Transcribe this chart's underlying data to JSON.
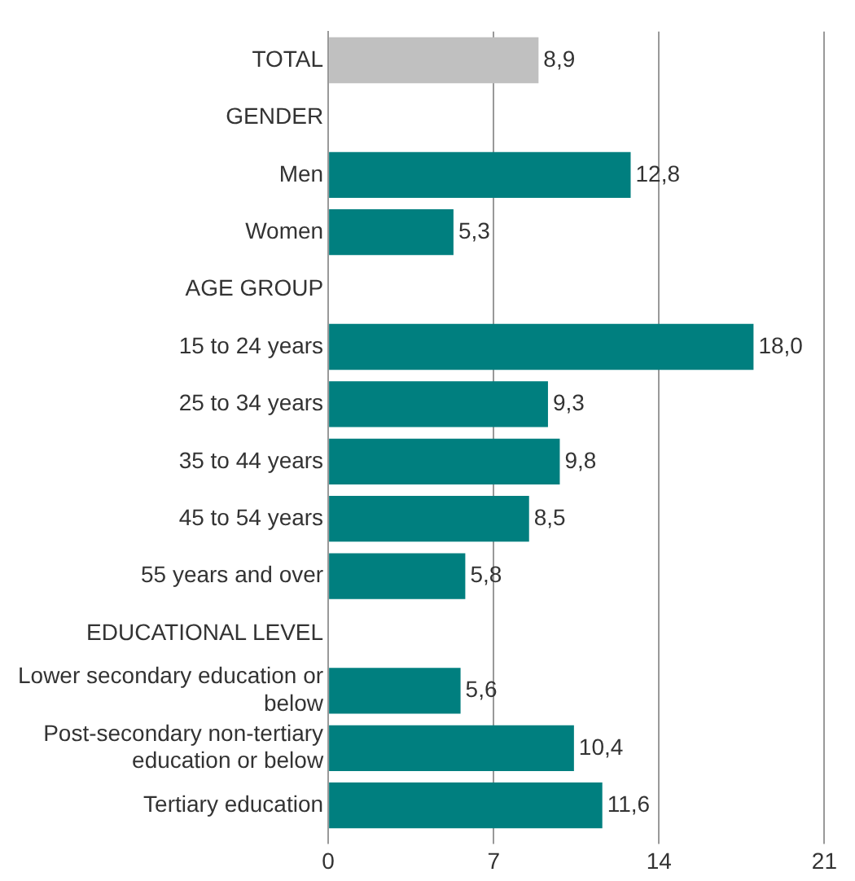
{
  "chart_data": {
    "type": "bar",
    "orientation": "horizontal",
    "categories": [
      "TOTAL",
      "GENDER",
      "Men",
      "Women",
      "AGE GROUP",
      "15 to 24 years",
      "25 to 34 years",
      "35 to 44 years",
      "45 to 54 years",
      "55 years and over",
      "EDUCATIONAL LEVEL",
      "Lower secondary education or below",
      "Post-secondary non-tertiary education or below",
      "Tertiary education"
    ],
    "values": [
      8.9,
      null,
      12.8,
      5.3,
      null,
      18.0,
      9.3,
      9.8,
      8.5,
      5.8,
      null,
      5.6,
      10.4,
      11.6
    ],
    "value_labels": [
      "8,9",
      null,
      "12,8",
      "5,3",
      null,
      "18,0",
      "9,3",
      "9,8",
      "8,5",
      "5,8",
      null,
      "5,6",
      "10,4",
      "11,6"
    ],
    "colors": [
      "#c0c0c0",
      "#007f7f",
      "#007f7f",
      "#007f7f",
      "#007f7f",
      "#007f7f",
      "#007f7f",
      "#007f7f",
      "#007f7f",
      "#007f7f",
      "#007f7f",
      "#007f7f",
      "#007f7f",
      "#007f7f"
    ],
    "xlim": [
      0,
      21
    ],
    "xticks": [
      0,
      7,
      14,
      21
    ],
    "grid": "x",
    "legend": false
  }
}
